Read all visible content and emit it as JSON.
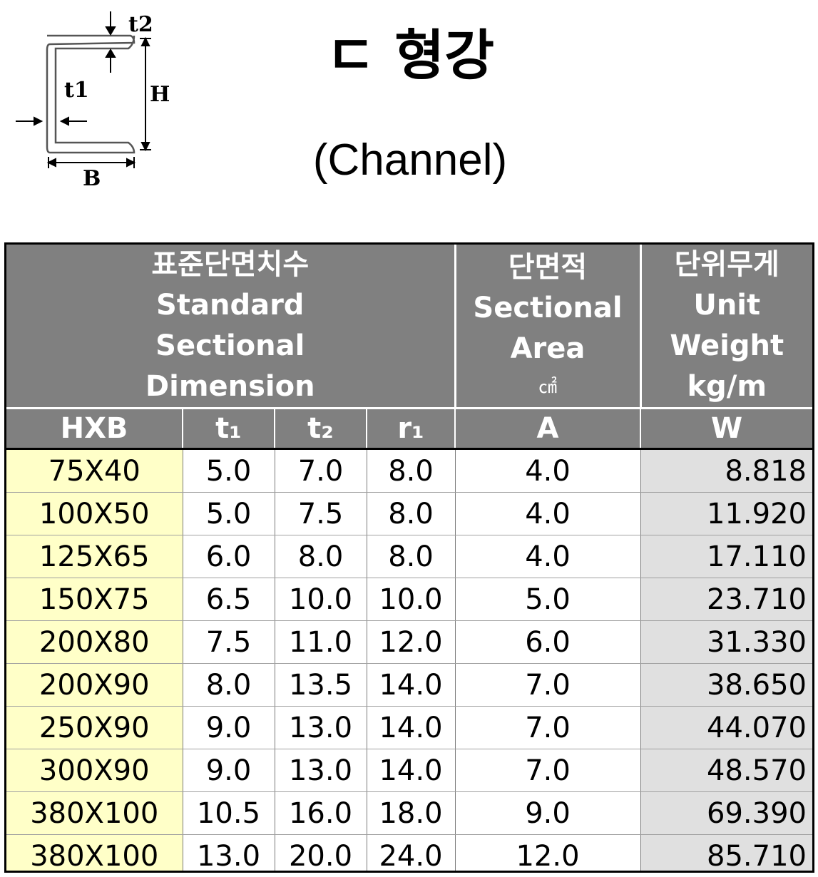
{
  "diagram": {
    "labels": {
      "t2": "t2",
      "t1": "t1",
      "H": "H",
      "B": "B"
    }
  },
  "title": {
    "korean": "ㄷ 형강",
    "english": "(Channel)"
  },
  "table": {
    "group_headers": [
      {
        "lines": [
          "표준단면치수",
          "Standard",
          "Sectional",
          "Dimension"
        ],
        "unit": ""
      },
      {
        "lines": [
          "단면적",
          "Sectional",
          "Area"
        ],
        "unit": "㎠"
      },
      {
        "lines": [
          "단위무게",
          "Unit",
          "Weight",
          "kg/m"
        ],
        "unit": ""
      }
    ],
    "columns": [
      "HXB",
      "t₁",
      "t₂",
      "r₁",
      "A",
      "W"
    ],
    "rows": [
      [
        "75X40",
        "5.0",
        "7.0",
        "8.0",
        "4.0",
        "8.818"
      ],
      [
        "100X50",
        "5.0",
        "7.5",
        "8.0",
        "4.0",
        "11.920"
      ],
      [
        "125X65",
        "6.0",
        "8.0",
        "8.0",
        "4.0",
        "17.110"
      ],
      [
        "150X75",
        "6.5",
        "10.0",
        "10.0",
        "5.0",
        "23.710"
      ],
      [
        "200X80",
        "7.5",
        "11.0",
        "12.0",
        "6.0",
        "31.330"
      ],
      [
        "200X90",
        "8.0",
        "13.5",
        "14.0",
        "7.0",
        "38.650"
      ],
      [
        "250X90",
        "9.0",
        "13.0",
        "14.0",
        "7.0",
        "44.070"
      ],
      [
        "300X90",
        "9.0",
        "13.0",
        "14.0",
        "7.0",
        "48.570"
      ],
      [
        "380X100",
        "10.5",
        "16.0",
        "18.0",
        "9.0",
        "69.390"
      ],
      [
        "380X100",
        "13.0",
        "20.0",
        "24.0",
        "12.0",
        "85.710"
      ]
    ]
  },
  "colors": {
    "header_bg": "#808080",
    "size_col_bg": "#ffffc8",
    "weight_col_bg": "#e0e0e0"
  }
}
